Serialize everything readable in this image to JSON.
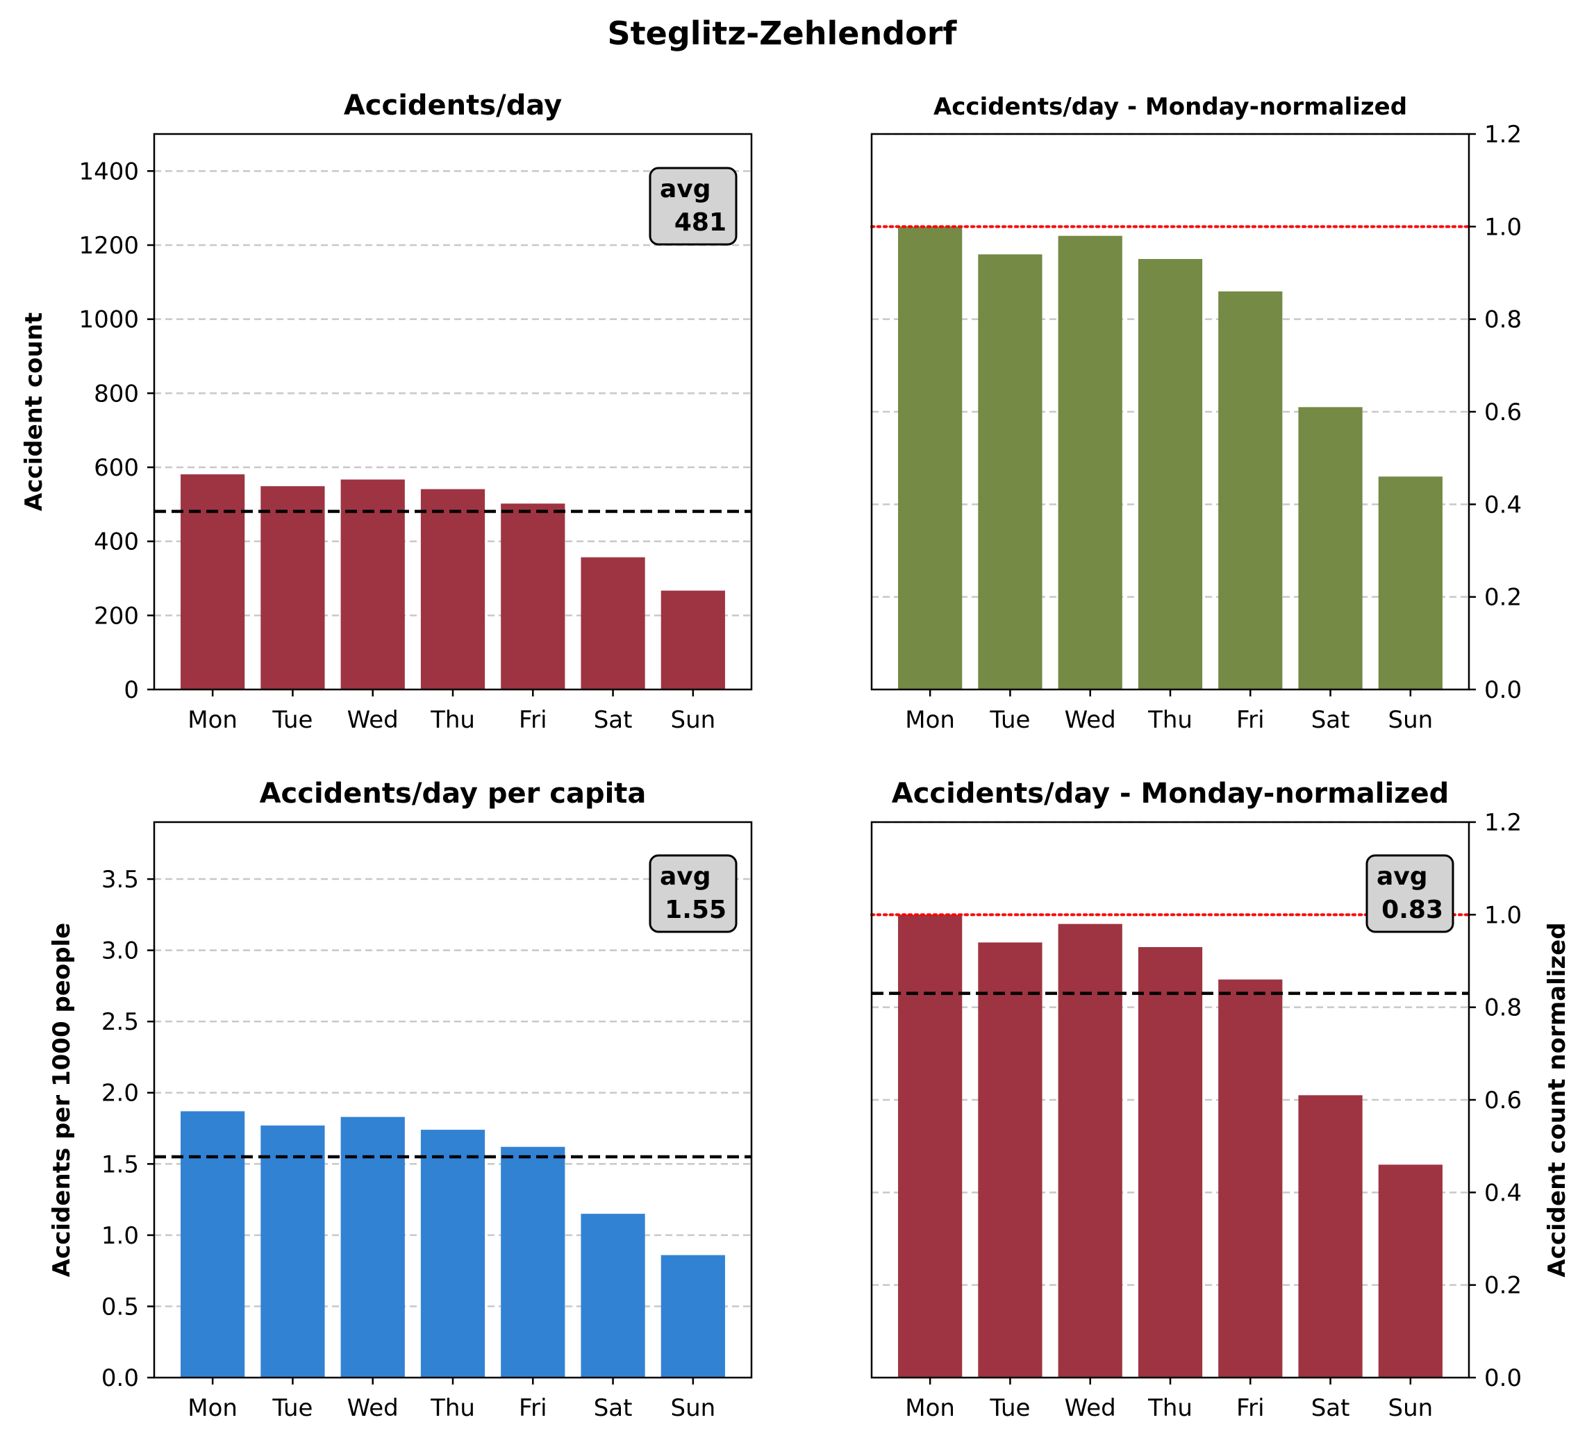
{
  "suptitle": "Steglitz-Zehlendorf",
  "chart_data": [
    {
      "type": "bar",
      "title": "Accidents/day",
      "categories": [
        "Mon",
        "Tue",
        "Wed",
        "Thu",
        "Fri",
        "Sat",
        "Sun"
      ],
      "values": [
        581,
        549,
        567,
        541,
        502,
        357,
        267
      ],
      "ylabel": "Accident count",
      "ylim": [
        0,
        1500
      ],
      "yticks": [
        0,
        200,
        400,
        600,
        800,
        1000,
        1200,
        1400
      ],
      "ytick_labels": [
        "0",
        "200",
        "400",
        "600",
        "800",
        "1000",
        "1200",
        "1400"
      ],
      "yaxis_side": "left",
      "bar_color": "#9e3442",
      "grid": "horizontal dashed",
      "average": {
        "label": "avg",
        "value": 481,
        "text": "481",
        "line": "black dashed"
      }
    },
    {
      "type": "bar",
      "title": "Accidents/day - Monday-normalized",
      "categories": [
        "Mon",
        "Tue",
        "Wed",
        "Thu",
        "Fri",
        "Sat",
        "Sun"
      ],
      "values": [
        1.0,
        0.94,
        0.98,
        0.93,
        0.86,
        0.61,
        0.46
      ],
      "ylabel": "",
      "ylim": [
        0,
        1.2
      ],
      "yticks": [
        0,
        0.2,
        0.4,
        0.6,
        0.8,
        1.0,
        1.2
      ],
      "ytick_labels": [
        "0.0",
        "0.2",
        "0.4",
        "0.6",
        "0.8",
        "1.0",
        "1.2"
      ],
      "yaxis_side": "right",
      "bar_color": "#748a45",
      "grid": "horizontal dashed",
      "reference_line": {
        "value": 1.0,
        "color": "#ff0000",
        "style": "dotted"
      }
    },
    {
      "type": "bar",
      "title": "Accidents/day per capita",
      "categories": [
        "Mon",
        "Tue",
        "Wed",
        "Thu",
        "Fri",
        "Sat",
        "Sun"
      ],
      "values": [
        1.87,
        1.77,
        1.83,
        1.74,
        1.62,
        1.15,
        0.86
      ],
      "ylabel": "Accidents per 1000 people",
      "ylim": [
        0,
        3.9
      ],
      "yticks": [
        0,
        0.5,
        1.0,
        1.5,
        2.0,
        2.5,
        3.0,
        3.5
      ],
      "ytick_labels": [
        "0.0",
        "0.5",
        "1.0",
        "1.5",
        "2.0",
        "2.5",
        "3.0",
        "3.5"
      ],
      "yaxis_side": "left",
      "bar_color": "#3282d4",
      "grid": "horizontal dashed",
      "average": {
        "label": "avg",
        "value": 1.55,
        "text": "1.55",
        "line": "black dashed"
      }
    },
    {
      "type": "bar",
      "title": "Accidents/day - Monday-normalized",
      "categories": [
        "Mon",
        "Tue",
        "Wed",
        "Thu",
        "Fri",
        "Sat",
        "Sun"
      ],
      "values": [
        1.0,
        0.94,
        0.98,
        0.93,
        0.86,
        0.61,
        0.46
      ],
      "ylabel": "Accident count normalized",
      "ylim": [
        0,
        1.2
      ],
      "yticks": [
        0,
        0.2,
        0.4,
        0.6,
        0.8,
        1.0,
        1.2
      ],
      "ytick_labels": [
        "0.0",
        "0.2",
        "0.4",
        "0.6",
        "0.8",
        "1.0",
        "1.2"
      ],
      "yaxis_side": "right",
      "bar_color": "#9e3442",
      "grid": "horizontal dashed",
      "reference_line": {
        "value": 1.0,
        "color": "#ff0000",
        "style": "dotted"
      },
      "average": {
        "label": "avg",
        "value": 0.83,
        "text": "0.83",
        "line": "black dashed"
      }
    }
  ]
}
